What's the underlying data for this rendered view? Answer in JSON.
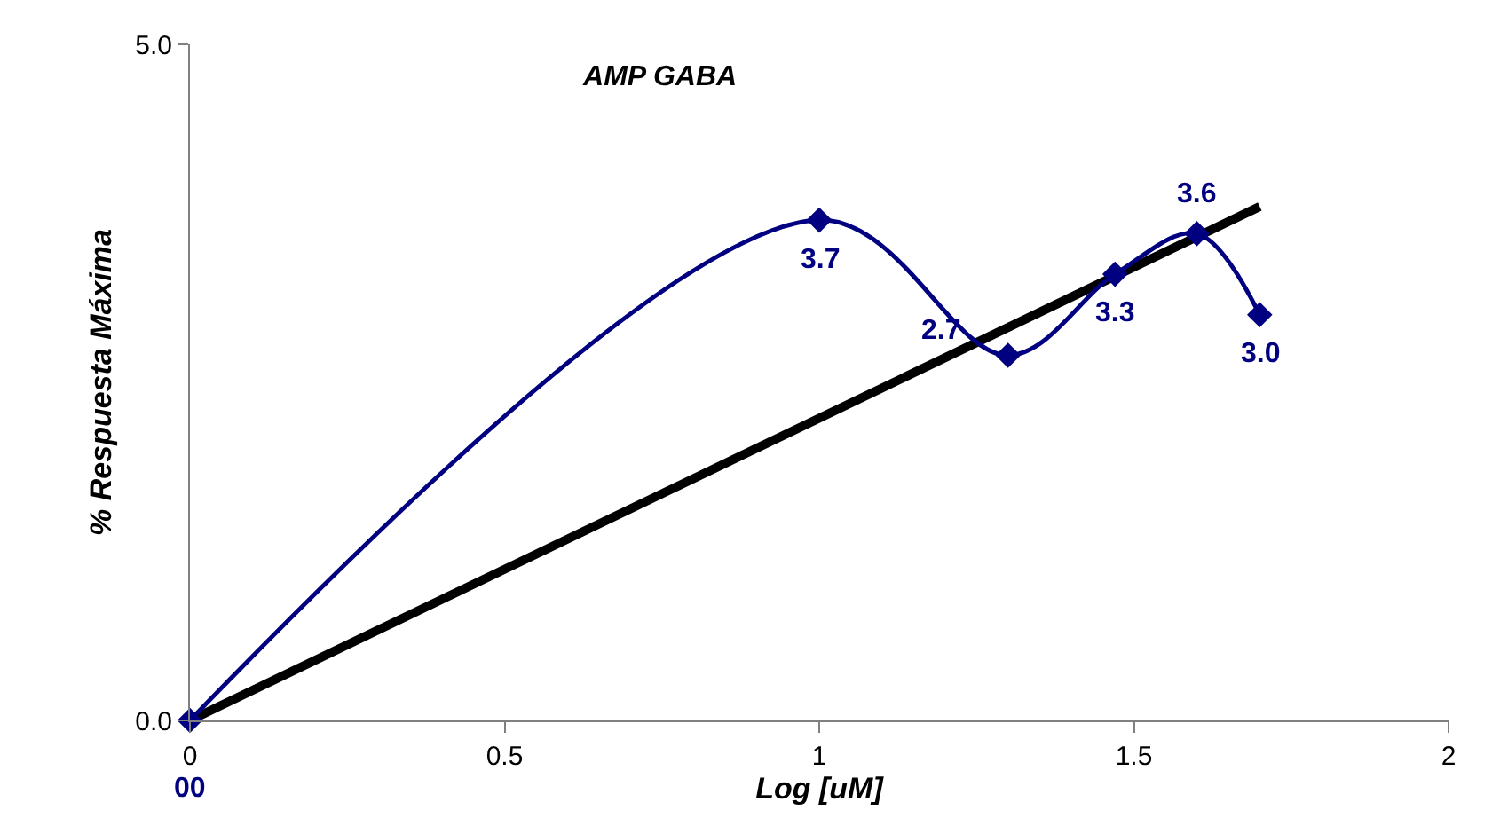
{
  "chart_data": {
    "type": "line",
    "title": "AMP GABA",
    "xlabel": "Log [uM]",
    "ylabel": "% Respuesta Máxima",
    "xlim": [
      0,
      2
    ],
    "xticks": [
      0,
      0.5,
      1,
      1.5,
      2
    ],
    "ylim": [
      0,
      5
    ],
    "yticks": [
      {
        "value": 0,
        "label": "0.0"
      },
      {
        "value": 5,
        "label": "5.0"
      }
    ],
    "marker": "diamond",
    "series": [
      {
        "color": "#000080",
        "x": [
          0,
          1.0,
          1.3,
          1.47,
          1.6,
          1.7
        ],
        "values": [
          0,
          3.7,
          2.7,
          3.3,
          3.6,
          3.0
        ],
        "value_labels": [
          "00",
          "3.7",
          "2.7",
          "3.3",
          "3.6",
          "3.0"
        ]
      },
      {
        "type": "line",
        "color": "#000000",
        "x": [
          0,
          1.7
        ],
        "values": [
          0,
          3.8
        ],
        "marker": "none"
      }
    ]
  }
}
